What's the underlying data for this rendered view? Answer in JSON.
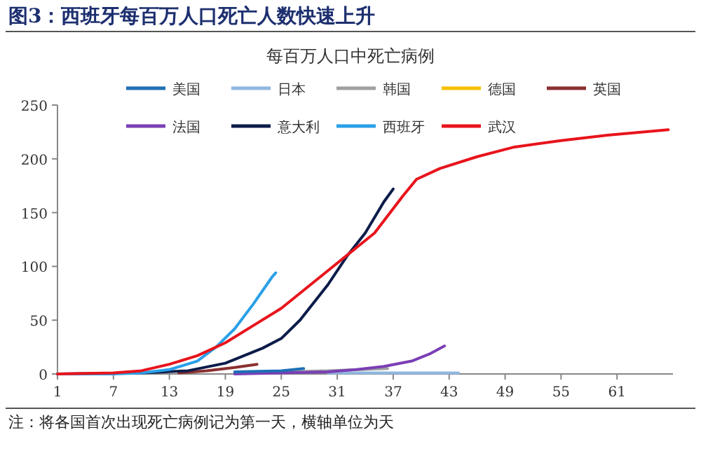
{
  "chart_data": {
    "type": "line",
    "title": "图3：西班牙每百万人口死亡人数快速上升",
    "subtitle": "每百万人口中死亡病例",
    "annotations": [
      "注：将各国首次出现死亡病例记为第一天，横轴单位为天"
    ],
    "xlim": [
      1,
      67
    ],
    "xticks": [
      1,
      7,
      13,
      19,
      25,
      31,
      37,
      43,
      49,
      55,
      61
    ],
    "ylim": [
      0,
      250
    ],
    "yticks": [
      0,
      50,
      100,
      150,
      200,
      250
    ],
    "grid": false,
    "legend": "top",
    "marker": "none",
    "line_style": "solid",
    "series": [
      {
        "name": "美国",
        "color": "#1f6fb5",
        "x": [
          20,
          25,
          27.4
        ],
        "values": [
          2,
          3,
          5
        ]
      },
      {
        "name": "日本",
        "color": "#8fb8e0",
        "x": [
          30,
          37,
          44
        ],
        "values": [
          1,
          1,
          1
        ]
      },
      {
        "name": "韩国",
        "color": "#a0a0a0",
        "x": [
          20,
          25,
          30,
          36.4
        ],
        "values": [
          1,
          2,
          3,
          5
        ]
      },
      {
        "name": "德国",
        "color": "#f5c000"
      },
      {
        "name": "英国",
        "color": "#8b3030",
        "x": [
          14,
          17,
          20,
          22.4
        ],
        "values": [
          1,
          3,
          6,
          9
        ]
      },
      {
        "name": "法国",
        "color": "#7b3fb5",
        "x": [
          20,
          30,
          33,
          36,
          39,
          41,
          42.5
        ],
        "values": [
          0,
          2,
          4,
          7,
          12,
          19,
          26
        ]
      },
      {
        "name": "意大利",
        "color": "#0c1c4a",
        "x": [
          1,
          10,
          15,
          19,
          23,
          25,
          27,
          30,
          32,
          34,
          36,
          37
        ],
        "values": [
          0,
          1,
          3,
          10,
          24,
          33,
          50,
          83,
          109,
          131,
          160,
          172
        ]
      },
      {
        "name": "西班牙",
        "color": "#2aa0e8",
        "x": [
          1,
          7,
          10,
          13,
          16,
          18,
          20,
          22,
          24,
          24.4
        ],
        "values": [
          0,
          0,
          1,
          4,
          12,
          25,
          42,
          65,
          90,
          94
        ]
      },
      {
        "name": "武汉",
        "color": "#e8141c",
        "x": [
          1,
          7,
          10,
          13,
          16,
          19,
          22,
          25,
          30,
          35,
          38,
          39.5,
          42,
          46,
          50,
          55,
          60,
          66.5
        ],
        "values": [
          0,
          1,
          3,
          9,
          17,
          29,
          45,
          61,
          96,
          131,
          165,
          181,
          191,
          202,
          211,
          217,
          222,
          227
        ]
      }
    ]
  }
}
